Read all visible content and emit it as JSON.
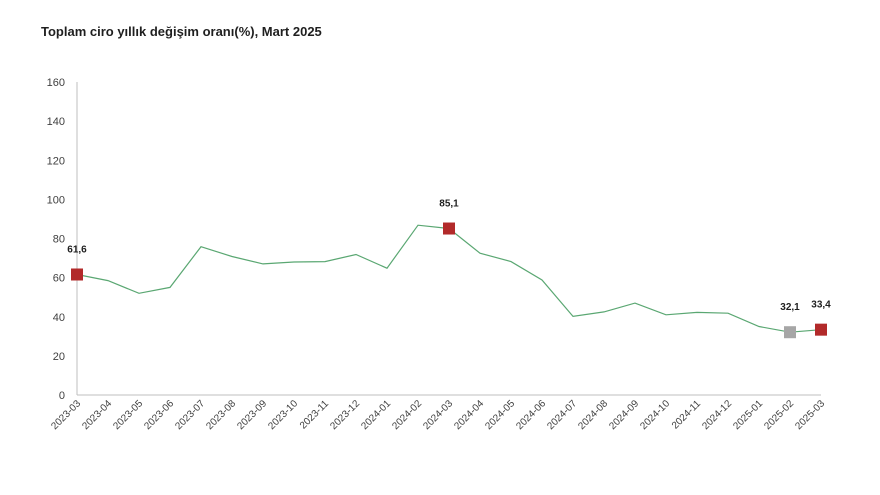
{
  "chart_data": {
    "type": "line",
    "title": "Toplam ciro yıllık değişim oranı(%), Mart 2025",
    "xlabel": "",
    "ylabel": "",
    "ylim": [
      0,
      160
    ],
    "yticks": [
      0,
      20,
      40,
      60,
      80,
      100,
      120,
      140,
      160
    ],
    "grid": false,
    "legend": "none",
    "categories": [
      "2023-03",
      "2023-04",
      "2023-05",
      "2023-06",
      "2023-07",
      "2023-08",
      "2023-09",
      "2023-10",
      "2023-11",
      "2023-12",
      "2024-01",
      "2024-02",
      "2024-03",
      "2024-04",
      "2024-05",
      "2024-06",
      "2024-07",
      "2024-08",
      "2024-09",
      "2024-10",
      "2024-11",
      "2024-12",
      "2025-01",
      "2025-02",
      "2025-03"
    ],
    "series": [
      {
        "values": [
          61.6,
          58.5,
          52.0,
          55.0,
          75.8,
          70.8,
          67.0,
          68.0,
          68.2,
          71.8,
          64.8,
          86.8,
          85.1,
          72.5,
          68.2,
          58.8,
          40.2,
          42.5,
          47.0,
          41.0,
          42.2,
          41.8,
          35.0,
          32.1,
          33.4
        ],
        "color": "#5aa772"
      }
    ],
    "highlights": [
      {
        "category": "2023-03",
        "value": 61.6,
        "label": "61,6",
        "color": "#b22a2a"
      },
      {
        "category": "2024-03",
        "value": 85.1,
        "label": "85,1",
        "color": "#b22a2a"
      },
      {
        "category": "2025-02",
        "value": 32.1,
        "label": "32,1",
        "color": "#a6a6a6"
      },
      {
        "category": "2025-03",
        "value": 33.4,
        "label": "33,4",
        "color": "#b22a2a"
      }
    ],
    "axis_color": "#bfbfbf"
  }
}
